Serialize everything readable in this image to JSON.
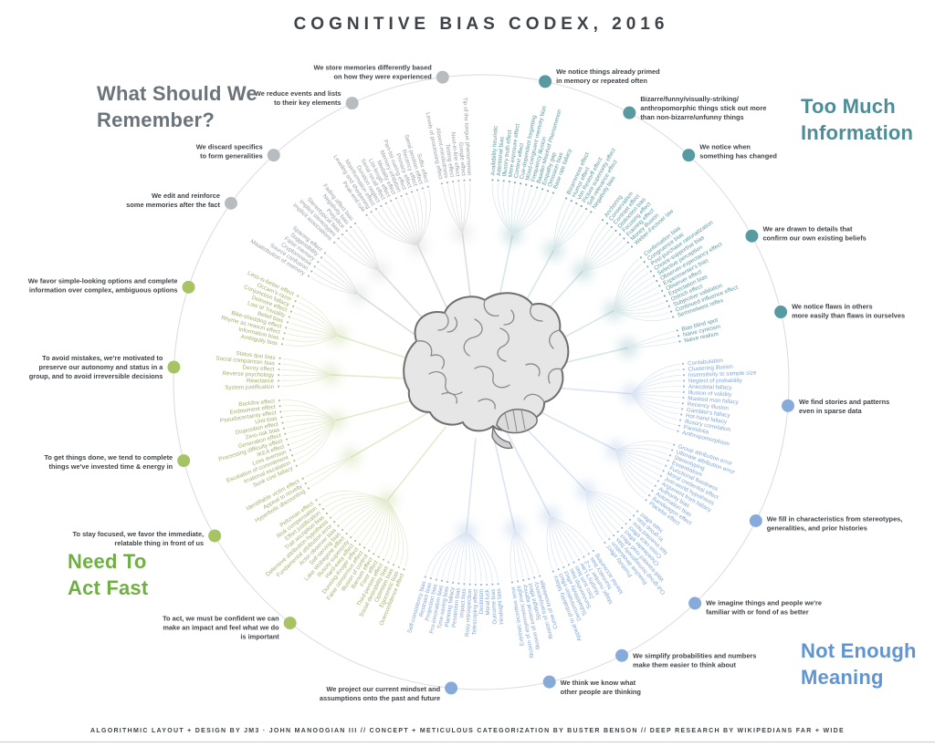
{
  "title": "COGNITIVE BIAS CODEX, 2016",
  "footer": "ALGORITHMIC LAYOUT + DESIGN BY JM3 · JOHN MANOOGIAN III // CONCEPT + METICULOUS CATEGORIZATION BY BUSTER BENSON // DEEP RESEARCH BY WIKIPEDIANS FAR + WIDE",
  "center_icon": "brain-illustration",
  "chart_data": {
    "type": "radial-dendrogram",
    "layout": "full-circle, clockwise from 12 o'clock",
    "groups": [
      {
        "name": "Too Much Information",
        "heading": "Too Much\nInformation",
        "heading_color": "#4e8d97",
        "label_color": "#5e9aa2",
        "link_color": "#d7e6e8",
        "dot_color": "#579aa2",
        "clusters": [
          {
            "annotation": "We notice things already primed\nin memory or repeated often",
            "biases": [
              "Availability heuristic",
              "Attentional bias",
              "Illusory truth effect",
              "Mere exposure effect",
              "Context effect",
              "Cue-dependent forgetting",
              "Mood-congruent memory bias",
              "Frequency illusion",
              "Baader-Meinhof Phenomenon",
              "Empathy gap",
              "Omission bias",
              "Base rate fallacy"
            ]
          },
          {
            "annotation": "Bizarre/funny/visually-striking/\nanthropomorphic things stick out more\nthan non-bizarre/unfunny things",
            "biases": [
              "Bizarreness effect",
              "Humor effect",
              "Von Restorff effect",
              "Picture superiority effect",
              "Self-relevance effect",
              "Negativity bias"
            ]
          },
          {
            "annotation": "We notice when\nsomething has changed",
            "biases": [
              "Anchoring",
              "Conservatism",
              "Contrast effect",
              "Distinction bias",
              "Focusing effect",
              "Framing effect",
              "Money illusion",
              "Weber-Fechner law"
            ]
          },
          {
            "annotation": "We are drawn to details that\nconfirm our own existing beliefs",
            "biases": [
              "Confirmation bias",
              "Congruence bias",
              "Post-purchase rationalization",
              "Choice-supportive bias",
              "Selective perception",
              "Observer-expectancy effect",
              "Experimenter's bias",
              "Observer effect",
              "Expectation bias",
              "Ostrich effect",
              "Subjective validation",
              "Continued influence effect",
              "Semmelweis reflex"
            ]
          },
          {
            "annotation": "We notice flaws in others\nmore easily than flaws in ourselves",
            "biases": [
              "Bias blind spot",
              "Naive cynicism",
              "Naive realism"
            ]
          }
        ]
      },
      {
        "name": "Not Enough Meaning",
        "heading": "Not Enough\nMeaning",
        "heading_color": "#6095d1",
        "label_color": "#82a7d6",
        "link_color": "#dbe4f2",
        "dot_color": "#86abdb",
        "clusters": [
          {
            "annotation": "We find stories and patterns\neven in sparse data",
            "biases": [
              "Confabulation",
              "Clustering illusion",
              "Insensitivity to sample size",
              "Neglect of probability",
              "Anecdotal fallacy",
              "Illusion of validity",
              "Masked man fallacy",
              "Recency illusion",
              "Gambler's fallacy",
              "Hot-hand fallacy",
              "Illusory correlation",
              "Pareidolia",
              "Anthropomorphism"
            ]
          },
          {
            "annotation": "We fill in characteristics from stereotypes,\ngeneralities, and prior histories",
            "biases": [
              "Group attribution error",
              "Ultimate attribution error",
              "Stereotyping",
              "Essentialism",
              "Functional fixedness",
              "Moral credential effect",
              "Just-world hypothesis",
              "Argument from fallacy",
              "Authority bias",
              "Automation bias",
              "Bandwagon effect",
              "Placebo effect"
            ]
          },
          {
            "annotation": "We imagine things and people we're\nfamiliar with or fond of as better",
            "biases": [
              "Halo effect",
              "In-group bias",
              "Not invented here",
              "Cross-race effect",
              "Cheerleader effect",
              "Well-traveled road effect",
              "Out-group homogeneity bias",
              "Reactive devaluation",
              "Positivity effect"
            ]
          },
          {
            "annotation": "We simplify probabilities and numbers\nmake them easier to think about",
            "biases": [
              "Mental accounting",
              "Normalcy bias",
              "Magic number 7+-2",
              "Murphy's Law",
              "Zero sum bias",
              "Survivorship bias",
              "Subadditivity effect",
              "Denomination effect",
              "Appeal to probability fallacy"
            ]
          },
          {
            "annotation": "We think we know what\nother people are thinking",
            "biases": [
              "Curse of knowledge",
              "Illusion of transparency",
              "Spotlight effect",
              "Illusion of external agency",
              "Illusion of asymmetric insight",
              "Extrinsic incentive error"
            ]
          },
          {
            "annotation": "We project our current mindset and\nassumptions onto the past and future",
            "biases": [
              "Hindsight bias",
              "Outcome bias",
              "Moral luck",
              "Declinism",
              "Telescoping effect",
              "Rosy retrospection",
              "Impact bias",
              "Pessimism bias",
              "Planning fallacy",
              "Time-saving bias",
              "Pro-innovation bias",
              "Projection bias",
              "Restraint bias",
              "Self-consistency bias"
            ]
          }
        ]
      },
      {
        "name": "Need To Act Fast",
        "heading": "Need To\nAct Fast",
        "heading_color": "#70b043",
        "label_color": "#a4b06c",
        "link_color": "#e4eacf",
        "dot_color": "#a6c463",
        "clusters": [
          {
            "annotation": "To act, we must be confident we can\nmake an impact and feel what we do\nis important",
            "biases": [
              "Overconfidence effect",
              "Egocentric bias",
              "Optimism bias",
              "Social desirability bias",
              "Third-person effect",
              "Forer effect",
              "Barnum effect",
              "Illusion of control",
              "False consensus effect",
              "Dunning-Kruger effect",
              "Hard-easy effect",
              "Illusory superiority",
              "Lake Wobegone effect",
              "Self-serving bias",
              "Actor-observer bias",
              "Fundamental attribution error",
              "Defensive attribution hypothesis",
              "Trait ascription bias",
              "Effort justification",
              "Risk compensation",
              "Peltzman effect"
            ]
          },
          {
            "annotation": "To stay focused, we favor the immediate,\nrelatable thing in front of us",
            "biases": [
              "Hyperbolic discounting",
              "Appeal to novelty",
              "Identifiable victim effect"
            ]
          },
          {
            "annotation": "To get things done, we tend to complete\nthings we've invested time & energy in",
            "biases": [
              "Sunk cost fallacy",
              "Irrational escalation",
              "Escalation of commitment",
              "Loss aversion",
              "IKEA effect",
              "Processing difficulty effect",
              "Generation effect",
              "Zero-risk bias",
              "Disposition effect",
              "Unit bias",
              "Pseudocertainty effect",
              "Endowment effect",
              "Backfire effect"
            ]
          },
          {
            "annotation": "To avoid mistakes, we're motivated to\npreserve our autonomy and status in a\ngroup, and to avoid irreversible decisions",
            "biases": [
              "System justification",
              "Reactance",
              "Reverse psychology",
              "Decoy effect",
              "Social comparison bias",
              "Status quo bias"
            ]
          },
          {
            "annotation": "We favor simple-looking options and complete\ninformation over complex, ambiguous options",
            "biases": [
              "Ambiguity bias",
              "Information bias",
              "Rhyme as reason effect",
              "Bike-shedding effect",
              "Belief bias",
              "Law of Triviality",
              "Delmore effect",
              "Conjunction fallacy",
              "Occam's razor",
              "Less-is-better effect"
            ]
          }
        ]
      },
      {
        "name": "What Should We Remember?",
        "heading": "What Should We\nRemember?",
        "heading_color": "#6c737b",
        "label_color": "#9aa0a6",
        "link_color": "#dddee0",
        "dot_color": "#b9bcbf",
        "clusters": [
          {
            "annotation": "We edit and reinforce\nsome memories after the fact",
            "biases": [
              "Misattribution of memory",
              "Source confusion",
              "Cryptomnesia",
              "False memory",
              "Suggestibility",
              "Spacing effect"
            ]
          },
          {
            "annotation": "We discard specifics\nto form generalities",
            "biases": [
              "Implicit associations",
              "Implicit stereotypes",
              "Stereotypical bias",
              "Prejudice",
              "Negativity bias",
              "Fading affect bias"
            ]
          },
          {
            "annotation": "We reduce events and lists\nto their key elements",
            "biases": [
              "Peak-end rule",
              "Leveling and sharpening",
              "Misinformation effect",
              "Duration neglect",
              "Serial recall effect",
              "List-length effect",
              "Modality effect",
              "Memory inhibition",
              "Part-list cueing effect",
              "Primacy effect",
              "Recency effect",
              "Serial position effect",
              "Suffix effect"
            ]
          },
          {
            "annotation": "We store memories differently based\non how they were experienced",
            "biases": [
              "Levels of processing effect",
              "Absent-mindedness",
              "Testing effect",
              "Next-in-line effect",
              "Google effect",
              "Tip of the tongue phenomenon"
            ]
          }
        ]
      }
    ]
  }
}
